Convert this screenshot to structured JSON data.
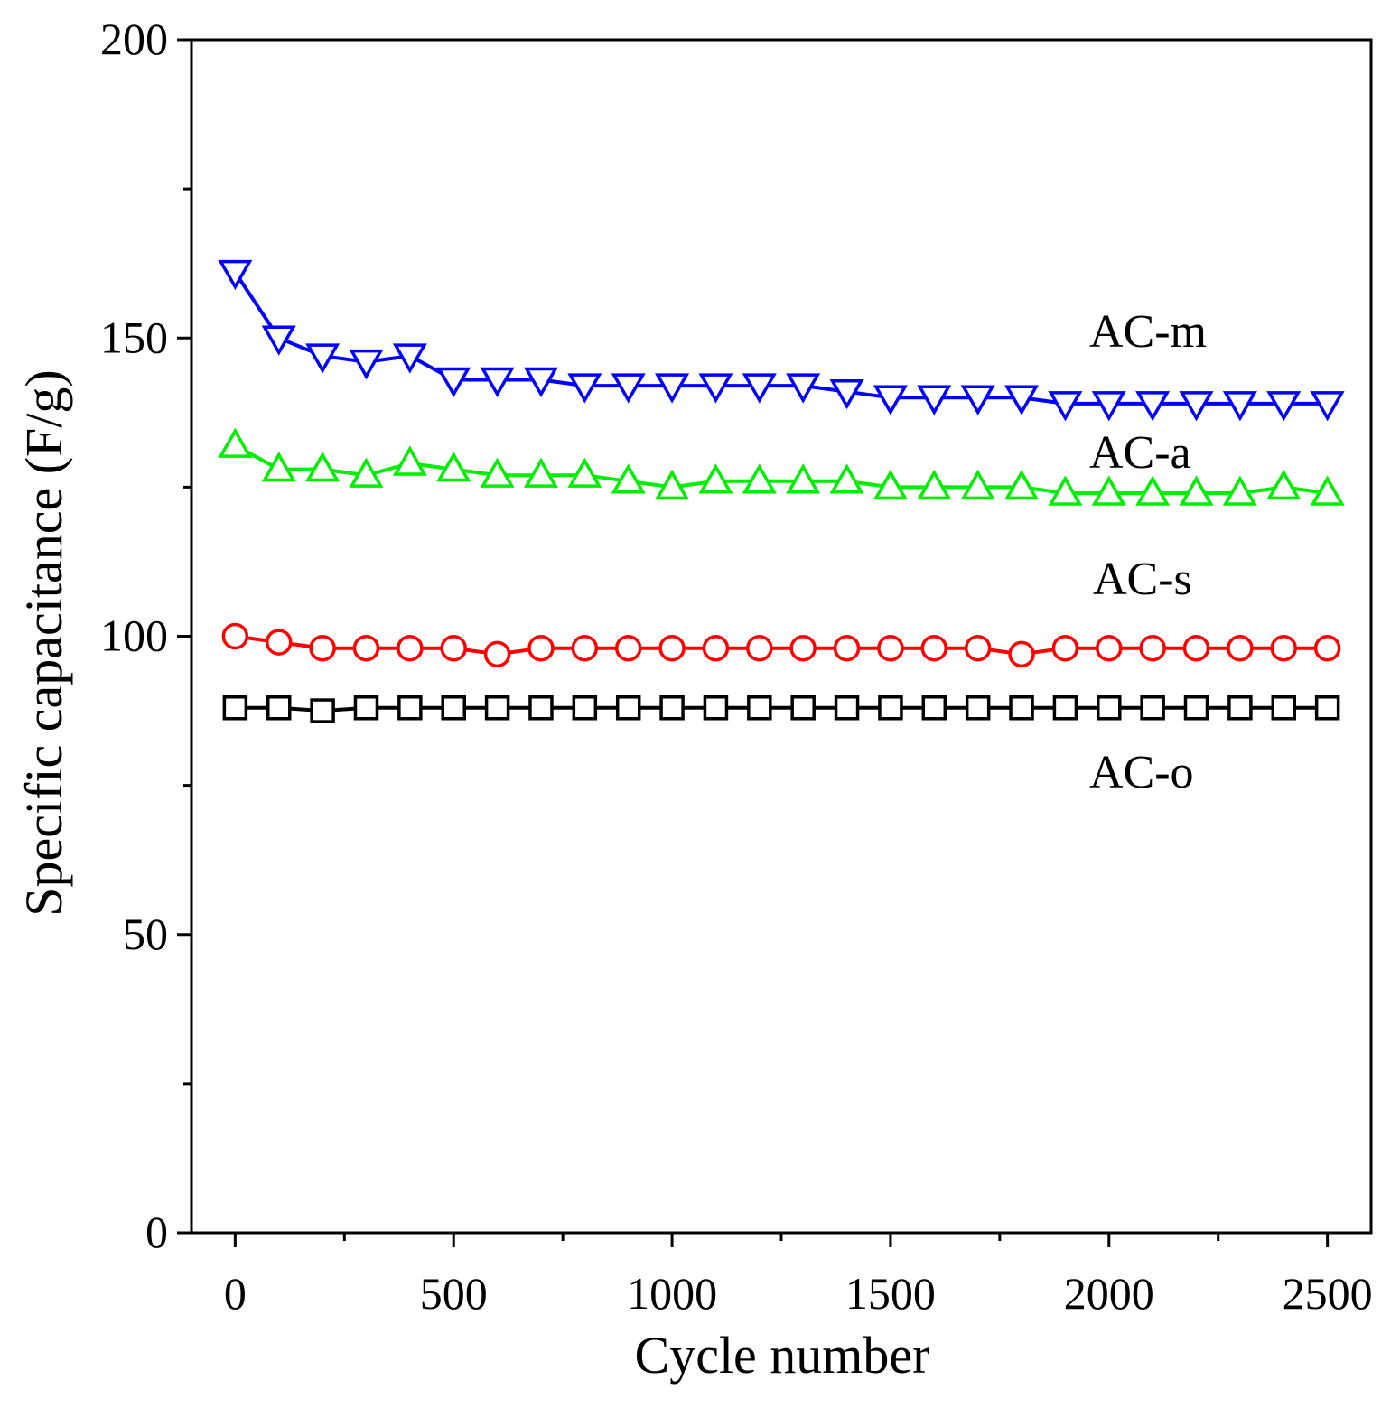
{
  "chart_data": {
    "type": "line",
    "title": "",
    "xlabel": "Cycle number",
    "ylabel": "Specific capacitance (F/g)",
    "xlim": [
      -100,
      2600
    ],
    "ylim": [
      0,
      200
    ],
    "xticks": [
      0,
      500,
      1000,
      1500,
      2000,
      2500
    ],
    "yticks": [
      0,
      50,
      100,
      150,
      200
    ],
    "xtick_labels": [
      "0",
      "500",
      "1000",
      "1500",
      "2000",
      "2500"
    ],
    "ytick_labels": [
      "0",
      "50",
      "100",
      "150",
      "200"
    ],
    "x": [
      0,
      100,
      200,
      300,
      400,
      500,
      600,
      700,
      800,
      900,
      1000,
      1100,
      1200,
      1300,
      1400,
      1500,
      1600,
      1700,
      1800,
      1900,
      2000,
      2100,
      2200,
      2300,
      2400,
      2500
    ],
    "grid": false,
    "series": [
      {
        "name": "AC-m",
        "label": "AC-m",
        "color": "#0000ff",
        "marker": "triangle-down",
        "values": [
          161,
          150,
          147,
          146,
          147,
          143,
          143,
          143,
          142,
          142,
          142,
          142,
          142,
          142,
          141,
          140,
          140,
          140,
          140,
          139,
          139,
          139,
          139,
          139,
          139,
          139
        ]
      },
      {
        "name": "AC-a",
        "label": "AC-a",
        "color": "#00ee00",
        "marker": "triangle-up",
        "values": [
          132,
          128,
          128,
          127,
          129,
          128,
          127,
          127,
          127,
          126,
          125,
          126,
          126,
          126,
          126,
          125,
          125,
          125,
          125,
          124,
          124,
          124,
          124,
          124,
          125,
          124
        ]
      },
      {
        "name": "AC-s",
        "label": "AC-s",
        "color": "#ff0000",
        "marker": "circle",
        "values": [
          100,
          99,
          98,
          98,
          98,
          98,
          97,
          98,
          98,
          98,
          98,
          98,
          98,
          98,
          98,
          98,
          98,
          98,
          97,
          98,
          98,
          98,
          98,
          98,
          98,
          98
        ]
      },
      {
        "name": "AC-o",
        "label": "AC-o",
        "color": "#000000",
        "marker": "square",
        "values": [
          88,
          88,
          87.5,
          88,
          88,
          88,
          88,
          88,
          88,
          88,
          88,
          88,
          88,
          88,
          88,
          88,
          88,
          88,
          88,
          88,
          88,
          88,
          88,
          88,
          88,
          88
        ]
      }
    ]
  }
}
